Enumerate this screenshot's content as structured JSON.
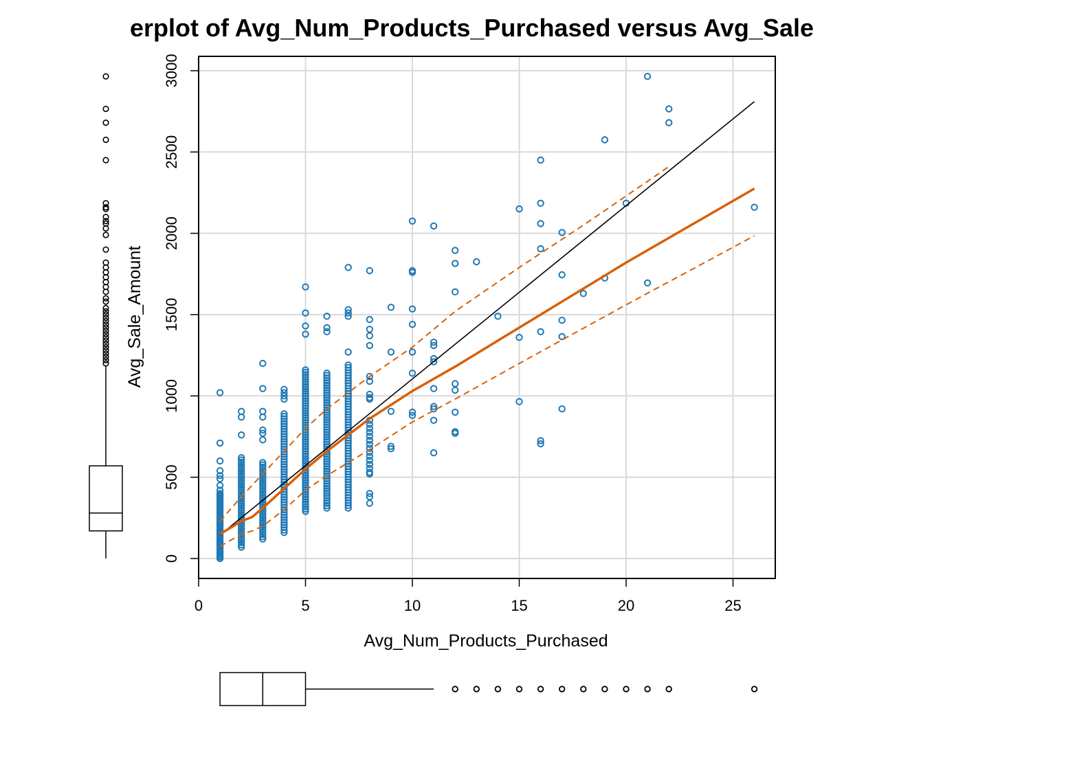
{
  "chart_data": {
    "type": "scatter",
    "title": "Scatterplot of Avg_Num_Products_Purchased versus Avg_Sale_Amount",
    "title_visible": "erplot of Avg_Num_Products_Purchased versus Avg_Sale",
    "xlabel": "Avg_Num_Products_Purchased",
    "ylabel": "Avg_Sale_Amount",
    "xlim": [
      0,
      27
    ],
    "ylim": [
      -120,
      3080
    ],
    "xticks": [
      0,
      5,
      10,
      15,
      20,
      25
    ],
    "yticks": [
      0,
      500,
      1000,
      1500,
      2000,
      2500,
      3000
    ],
    "grid": true,
    "colors": {
      "points": "#1f78b4",
      "smooth": "#d95f02",
      "fit": "#000000",
      "grid": "#d9d9d9",
      "box": "#000000"
    },
    "point_columns": [
      {
        "x": 1,
        "min": 0,
        "max": 400,
        "count": 45
      },
      {
        "x": 2,
        "min": 70,
        "max": 620,
        "count": 40
      },
      {
        "x": 3,
        "min": 120,
        "max": 590,
        "count": 34
      },
      {
        "x": 4,
        "min": 160,
        "max": 890,
        "count": 48
      },
      {
        "x": 5,
        "min": 290,
        "max": 1160,
        "count": 60
      },
      {
        "x": 6,
        "min": 310,
        "max": 1140,
        "count": 56
      },
      {
        "x": 7,
        "min": 310,
        "max": 1190,
        "count": 56
      },
      {
        "x": 8,
        "min": 530,
        "max": 850,
        "count": 14
      }
    ],
    "points": [
      {
        "x": 1,
        "y": 1020
      },
      {
        "x": 1,
        "y": 710
      },
      {
        "x": 1,
        "y": 600
      },
      {
        "x": 1,
        "y": 540
      },
      {
        "x": 1,
        "y": 510
      },
      {
        "x": 1,
        "y": 490
      },
      {
        "x": 1,
        "y": 450
      },
      {
        "x": 1,
        "y": 420
      },
      {
        "x": 2,
        "y": 905
      },
      {
        "x": 2,
        "y": 870
      },
      {
        "x": 2,
        "y": 760
      },
      {
        "x": 3,
        "y": 1200
      },
      {
        "x": 3,
        "y": 1045
      },
      {
        "x": 3,
        "y": 905
      },
      {
        "x": 3,
        "y": 870
      },
      {
        "x": 3,
        "y": 790
      },
      {
        "x": 3,
        "y": 770
      },
      {
        "x": 3,
        "y": 730
      },
      {
        "x": 4,
        "y": 1040
      },
      {
        "x": 4,
        "y": 1020
      },
      {
        "x": 4,
        "y": 1000
      },
      {
        "x": 4,
        "y": 980
      },
      {
        "x": 5,
        "y": 1670
      },
      {
        "x": 5,
        "y": 1510
      },
      {
        "x": 5,
        "y": 1430
      },
      {
        "x": 5,
        "y": 1380
      },
      {
        "x": 6,
        "y": 1490
      },
      {
        "x": 6,
        "y": 1420
      },
      {
        "x": 6,
        "y": 1395
      },
      {
        "x": 7,
        "y": 1790
      },
      {
        "x": 7,
        "y": 1530
      },
      {
        "x": 7,
        "y": 1510
      },
      {
        "x": 7,
        "y": 1490
      },
      {
        "x": 7,
        "y": 1270
      },
      {
        "x": 8,
        "y": 1770
      },
      {
        "x": 8,
        "y": 1470
      },
      {
        "x": 8,
        "y": 1410
      },
      {
        "x": 8,
        "y": 1370
      },
      {
        "x": 8,
        "y": 1310
      },
      {
        "x": 8,
        "y": 1120
      },
      {
        "x": 8,
        "y": 1090
      },
      {
        "x": 8,
        "y": 1010
      },
      {
        "x": 8,
        "y": 990
      },
      {
        "x": 8,
        "y": 980
      },
      {
        "x": 8,
        "y": 520
      },
      {
        "x": 8,
        "y": 400
      },
      {
        "x": 8,
        "y": 380
      },
      {
        "x": 8,
        "y": 340
      },
      {
        "x": 9,
        "y": 1545
      },
      {
        "x": 9,
        "y": 1270
      },
      {
        "x": 9,
        "y": 905
      },
      {
        "x": 9,
        "y": 690
      },
      {
        "x": 9,
        "y": 675
      },
      {
        "x": 10,
        "y": 2075
      },
      {
        "x": 10,
        "y": 1770
      },
      {
        "x": 10,
        "y": 1760
      },
      {
        "x": 10,
        "y": 1535
      },
      {
        "x": 10,
        "y": 1440
      },
      {
        "x": 10,
        "y": 1270
      },
      {
        "x": 10,
        "y": 1140
      },
      {
        "x": 10,
        "y": 900
      },
      {
        "x": 10,
        "y": 880
      },
      {
        "x": 11,
        "y": 2045
      },
      {
        "x": 11,
        "y": 1330
      },
      {
        "x": 11,
        "y": 1310
      },
      {
        "x": 11,
        "y": 1230
      },
      {
        "x": 11,
        "y": 1210
      },
      {
        "x": 11,
        "y": 1045
      },
      {
        "x": 11,
        "y": 935
      },
      {
        "x": 11,
        "y": 920
      },
      {
        "x": 11,
        "y": 850
      },
      {
        "x": 11,
        "y": 650
      },
      {
        "x": 12,
        "y": 1895
      },
      {
        "x": 12,
        "y": 1815
      },
      {
        "x": 12,
        "y": 1640
      },
      {
        "x": 12,
        "y": 1075
      },
      {
        "x": 12,
        "y": 1035
      },
      {
        "x": 12,
        "y": 900
      },
      {
        "x": 12,
        "y": 780
      },
      {
        "x": 12,
        "y": 770
      },
      {
        "x": 13,
        "y": 1825
      },
      {
        "x": 14,
        "y": 1490
      },
      {
        "x": 15,
        "y": 2150
      },
      {
        "x": 15,
        "y": 1360
      },
      {
        "x": 15,
        "y": 965
      },
      {
        "x": 16,
        "y": 2450
      },
      {
        "x": 16,
        "y": 2185
      },
      {
        "x": 16,
        "y": 2060
      },
      {
        "x": 16,
        "y": 1905
      },
      {
        "x": 16,
        "y": 1395
      },
      {
        "x": 16,
        "y": 725
      },
      {
        "x": 16,
        "y": 705
      },
      {
        "x": 17,
        "y": 2005
      },
      {
        "x": 17,
        "y": 1745
      },
      {
        "x": 17,
        "y": 1465
      },
      {
        "x": 17,
        "y": 1365
      },
      {
        "x": 17,
        "y": 920
      },
      {
        "x": 18,
        "y": 1630
      },
      {
        "x": 19,
        "y": 2575
      },
      {
        "x": 19,
        "y": 1725
      },
      {
        "x": 20,
        "y": 2185
      },
      {
        "x": 21,
        "y": 2965
      },
      {
        "x": 21,
        "y": 1695
      },
      {
        "x": 22,
        "y": 2765
      },
      {
        "x": 22,
        "y": 2680
      },
      {
        "x": 26,
        "y": 2160
      }
    ],
    "fit_line": {
      "x": [
        1,
        26
      ],
      "y": [
        145,
        2810
      ]
    },
    "smooth": {
      "x": [
        1,
        2,
        2.5,
        3,
        4,
        5,
        6,
        7,
        8,
        10,
        12,
        15,
        20,
        26
      ],
      "y": [
        150,
        230,
        255,
        310,
        430,
        550,
        660,
        760,
        860,
        1030,
        1180,
        1420,
        1820,
        2275
      ]
    },
    "smooth_upper": {
      "x": [
        1,
        2,
        3,
        4,
        5,
        6,
        7,
        8,
        10,
        12,
        15,
        18,
        20,
        22
      ],
      "y": [
        230,
        380,
        520,
        660,
        800,
        920,
        1020,
        1120,
        1300,
        1520,
        1790,
        2050,
        2230,
        2410
      ]
    },
    "smooth_lower": {
      "x": [
        1,
        2,
        2.5,
        3,
        4,
        5,
        6,
        7,
        8,
        10,
        12,
        15,
        20,
        26
      ],
      "y": [
        75,
        150,
        170,
        200,
        300,
        420,
        510,
        590,
        670,
        840,
        980,
        1200,
        1560,
        1985
      ]
    },
    "y_boxplot": {
      "min": 0,
      "q1": 170,
      "median": 280,
      "q3": 570,
      "whisker_high": 1180,
      "outliers": [
        1200,
        1220,
        1240,
        1260,
        1280,
        1300,
        1320,
        1340,
        1360,
        1380,
        1400,
        1420,
        1440,
        1460,
        1480,
        1500,
        1520,
        1540,
        1580,
        1600,
        1640,
        1670,
        1700,
        1730,
        1760,
        1790,
        1820,
        1900,
        1990,
        2030,
        2060,
        2075,
        2100,
        2150,
        2160,
        2185,
        2450,
        2575,
        2680,
        2765,
        2965
      ]
    },
    "x_boxplot": {
      "min": 1,
      "q1": 1,
      "median": 3,
      "q3": 5,
      "whisker_high": 11,
      "outliers": [
        12,
        13,
        14,
        15,
        16,
        17,
        18,
        19,
        20,
        21,
        22,
        26
      ]
    }
  }
}
